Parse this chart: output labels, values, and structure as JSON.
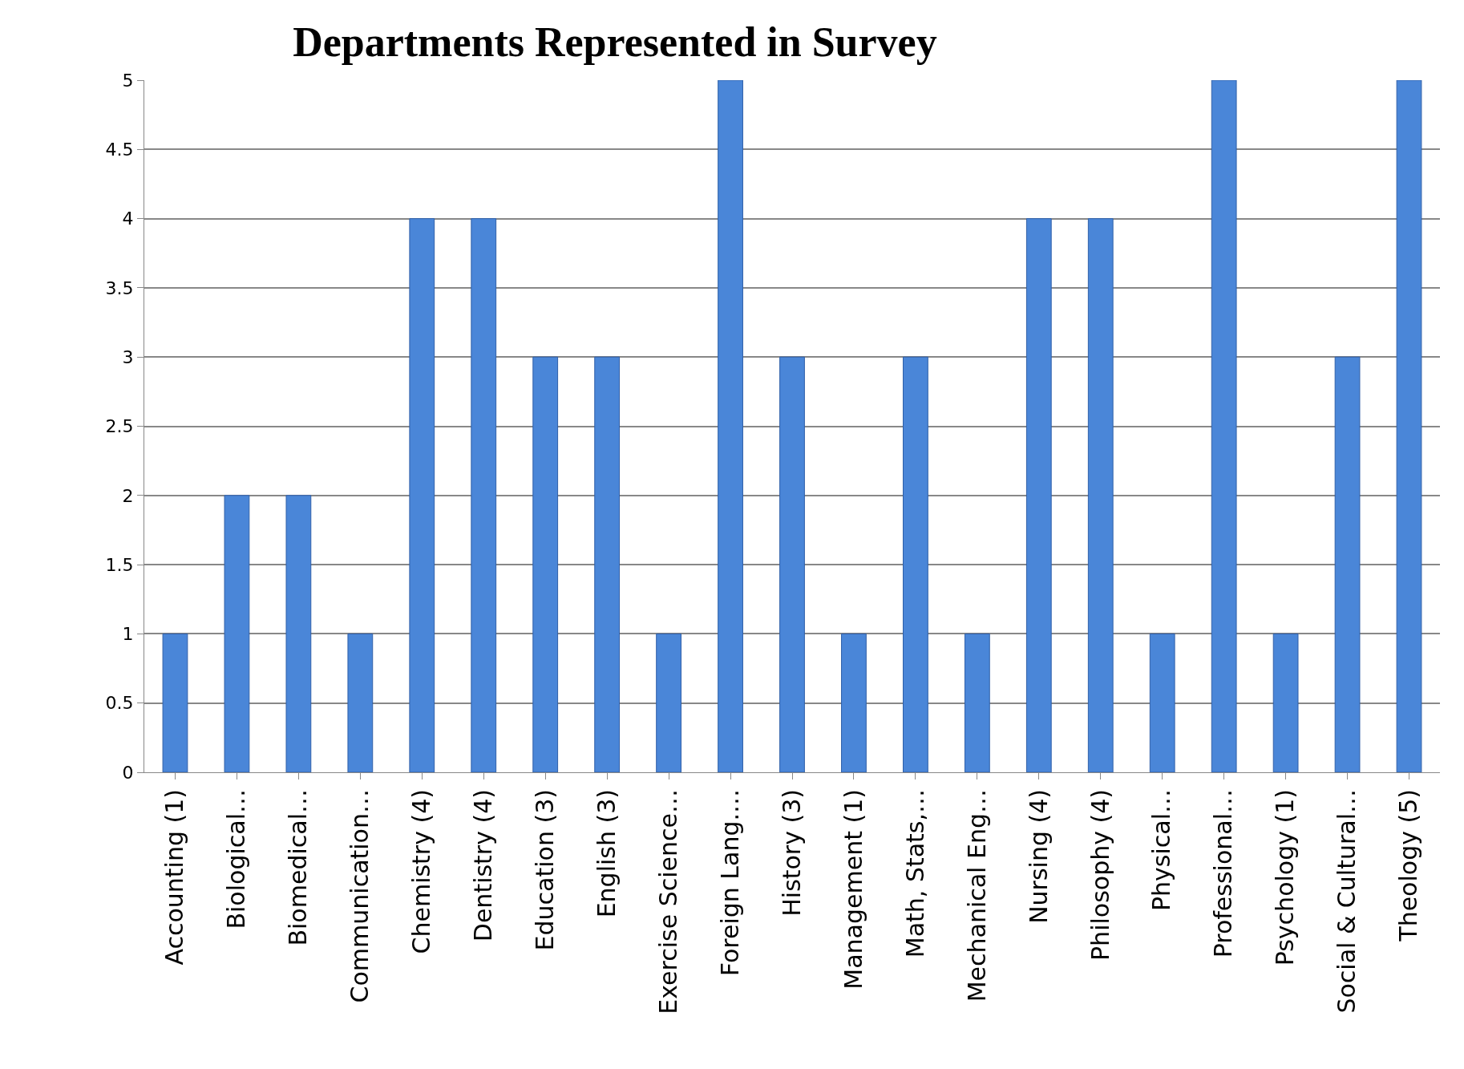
{
  "chart_data": {
    "type": "bar",
    "title": "Departments Represented in Survey",
    "categories": [
      "Accounting (1)",
      "Biological…",
      "Biomedical…",
      "Communication…",
      "Chemistry (4)",
      "Dentistry (4)",
      "Education (3)",
      "English (3)",
      "Exercise Science…",
      "Foreign Lang.…",
      "History (3)",
      "Management (1)",
      "Math, Stats,…",
      "Mechanical Eng…",
      "Nursing (4)",
      "Philosophy (4)",
      "Physical…",
      "Professional…",
      "Psychology (1)",
      "Social & Cultural…",
      "Theology (5)"
    ],
    "values": [
      1,
      2,
      2,
      1,
      4,
      4,
      3,
      3,
      1,
      5,
      3,
      1,
      3,
      1,
      4,
      4,
      1,
      5,
      1,
      3,
      5
    ],
    "color": "#4a86d8",
    "ylim": [
      0,
      5
    ],
    "yticks": [
      0,
      0.5,
      1,
      1.5,
      2,
      2.5,
      3,
      3.5,
      4,
      4.5,
      5
    ],
    "grid": "y",
    "legend": false
  }
}
